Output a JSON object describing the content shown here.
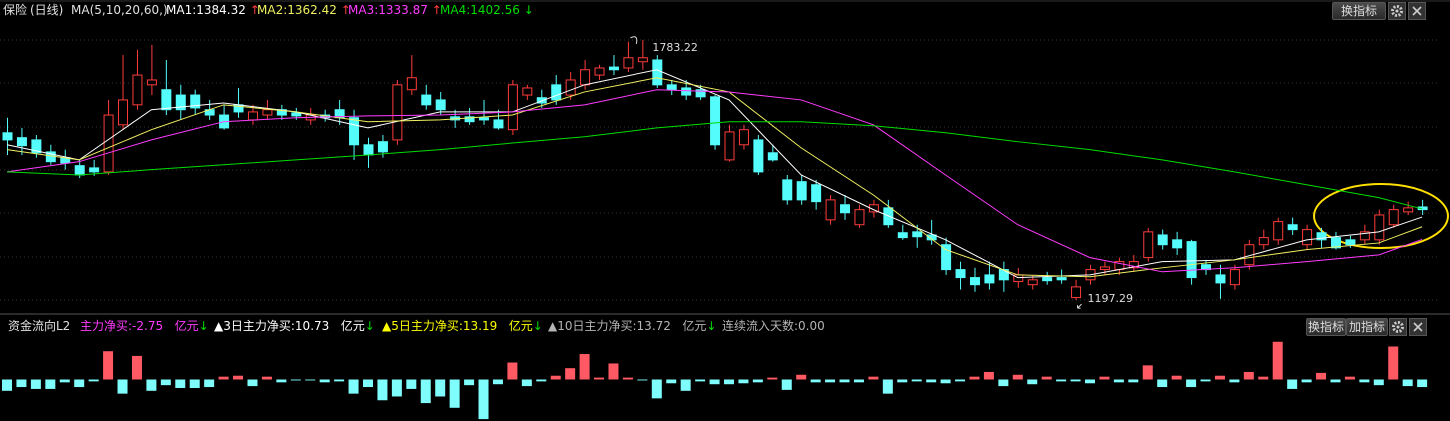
{
  "chart_data": [
    {
      "type": "candlestick",
      "title": "保险",
      "period": "(日线)",
      "ma_label": "MA(5,10,20,60,)",
      "ylim": [
        1175,
        1828
      ],
      "up_color": "#ff3c3c",
      "down_color": "#54fcfc",
      "open": [
        1574,
        1563,
        1558,
        1531,
        1518,
        1500,
        1495,
        1486,
        1592,
        1637,
        1682,
        1671,
        1659,
        1659,
        1626,
        1614,
        1637,
        1603,
        1614,
        1626,
        1619,
        1603,
        1614,
        1626,
        1608,
        1547,
        1554,
        1558,
        1671,
        1659,
        1648,
        1610,
        1610,
        1608,
        1603,
        1581,
        1659,
        1653,
        1682,
        1659,
        1682,
        1704,
        1722,
        1720,
        1734,
        1738,
        1682,
        1675,
        1671,
        1655,
        1513,
        1547,
        1558,
        1529,
        1468,
        1464,
        1457,
        1378,
        1412,
        1367,
        1396,
        1405,
        1349,
        1351,
        1344,
        1322,
        1266,
        1248,
        1254,
        1266,
        1239,
        1232,
        1248,
        1248,
        1203,
        1243,
        1266,
        1266,
        1270,
        1293,
        1344,
        1333,
        1329,
        1277,
        1254,
        1232,
        1277,
        1322,
        1333,
        1367,
        1322,
        1349,
        1338,
        1333,
        1333,
        1333,
        1367,
        1396,
        1407
      ],
      "close": [
        1558,
        1545,
        1529,
        1509,
        1506,
        1479,
        1486,
        1614,
        1648,
        1704,
        1693,
        1626,
        1626,
        1630,
        1614,
        1585,
        1621,
        1621,
        1626,
        1614,
        1612,
        1614,
        1608,
        1608,
        1547,
        1524,
        1531,
        1682,
        1698,
        1637,
        1626,
        1603,
        1599,
        1603,
        1585,
        1682,
        1675,
        1641,
        1648,
        1693,
        1716,
        1720,
        1716,
        1743,
        1743,
        1682,
        1671,
        1659,
        1655,
        1547,
        1576,
        1581,
        1486,
        1513,
        1423,
        1423,
        1419,
        1423,
        1394,
        1401,
        1412,
        1367,
        1338,
        1340,
        1333,
        1266,
        1248,
        1232,
        1236,
        1243,
        1254,
        1243,
        1241,
        1243,
        1227,
        1266,
        1272,
        1284,
        1284,
        1351,
        1322,
        1315,
        1248,
        1266,
        1236,
        1266,
        1322,
        1338,
        1374,
        1356,
        1356,
        1333,
        1315,
        1322,
        1351,
        1389,
        1401,
        1405,
        1401
      ],
      "high": [
        1608,
        1585,
        1569,
        1547,
        1536,
        1513,
        1513,
        1648,
        1749,
        1761,
        1772,
        1738,
        1682,
        1671,
        1648,
        1637,
        1675,
        1637,
        1648,
        1637,
        1630,
        1630,
        1626,
        1648,
        1626,
        1563,
        1569,
        1693,
        1749,
        1682,
        1666,
        1626,
        1630,
        1648,
        1626,
        1693,
        1682,
        1671,
        1704,
        1711,
        1738,
        1727,
        1749,
        1779,
        1783.22,
        1749,
        1693,
        1693,
        1682,
        1659,
        1592,
        1592,
        1569,
        1547,
        1479,
        1479,
        1468,
        1434,
        1434,
        1412,
        1423,
        1423,
        1367,
        1367,
        1378,
        1338,
        1284,
        1270,
        1284,
        1284,
        1270,
        1254,
        1261,
        1266,
        1243,
        1277,
        1284,
        1293,
        1299,
        1360,
        1356,
        1351,
        1333,
        1288,
        1277,
        1277,
        1333,
        1356,
        1383,
        1383,
        1367,
        1360,
        1351,
        1342,
        1367,
        1401,
        1412,
        1419,
        1423
      ],
      "low": [
        1524,
        1524,
        1518,
        1502,
        1491,
        1472,
        1477,
        1479,
        1581,
        1626,
        1659,
        1614,
        1603,
        1614,
        1603,
        1581,
        1608,
        1592,
        1603,
        1603,
        1603,
        1592,
        1599,
        1592,
        1513,
        1495,
        1518,
        1547,
        1659,
        1626,
        1614,
        1585,
        1592,
        1592,
        1581,
        1569,
        1648,
        1630,
        1637,
        1648,
        1671,
        1693,
        1704,
        1711,
        1716,
        1675,
        1659,
        1648,
        1648,
        1536,
        1509,
        1536,
        1479,
        1509,
        1412,
        1412,
        1401,
        1367,
        1378,
        1360,
        1383,
        1360,
        1333,
        1315,
        1322,
        1254,
        1221,
        1216,
        1221,
        1216,
        1225,
        1221,
        1232,
        1234,
        1197.29,
        1232,
        1254,
        1254,
        1261,
        1284,
        1311,
        1299,
        1232,
        1254,
        1200,
        1221,
        1266,
        1311,
        1322,
        1344,
        1311,
        1315,
        1311,
        1315,
        1322,
        1322,
        1360,
        1389,
        1389
      ],
      "ma_x": [
        0,
        5,
        10,
        15,
        20,
        25,
        30,
        35,
        40,
        45,
        50,
        55,
        60,
        65,
        70,
        75,
        80,
        85,
        90,
        95,
        98
      ],
      "series": [
        {
          "name": "MA1:",
          "color": "#ffffff",
          "arrow": "↑",
          "arrow_color": "#ff3c3c",
          "values": [
            1547,
            1513,
            1626,
            1641,
            1621,
            1585,
            1621,
            1621,
            1682,
            1716,
            1648,
            1479,
            1401,
            1333,
            1248,
            1254,
            1284,
            1288,
            1333,
            1351,
            1384.32
          ]
        },
        {
          "name": "MA2:",
          "color": "#f0f060",
          "arrow": "↑",
          "arrow_color": "#ff3c3c",
          "values": [
            1536,
            1513,
            1581,
            1637,
            1621,
            1599,
            1603,
            1614,
            1666,
            1698,
            1666,
            1540,
            1434,
            1311,
            1254,
            1250,
            1270,
            1288,
            1311,
            1326,
            1362.42
          ]
        },
        {
          "name": "MA3:",
          "color": "#ff3cff",
          "arrow": "↑",
          "arrow_color": "#ff3c3c",
          "values": [
            1486,
            1509,
            1558,
            1599,
            1608,
            1612,
            1614,
            1621,
            1637,
            1671,
            1666,
            1648,
            1592,
            1479,
            1367,
            1293,
            1261,
            1270,
            1284,
            1299,
            1333.87
          ]
        },
        {
          "name": "MA4:",
          "color": "#00dd00",
          "arrow": "↓",
          "arrow_color": "#00dd00",
          "values": [
            1486,
            1479,
            1491,
            1502,
            1513,
            1524,
            1536,
            1551,
            1565,
            1585,
            1599,
            1599,
            1590,
            1574,
            1554,
            1536,
            1513,
            1486,
            1457,
            1428,
            1402.56
          ]
        }
      ]
    },
    {
      "type": "bar",
      "title": "资金流向L2",
      "ylim": [
        -4.4,
        4.4
      ],
      "up_color": "#ff5a64",
      "down_color": "#7ffcfc",
      "items": [
        {
          "label": "主力净买:",
          "value": "-2.75",
          "unit": "亿元",
          "arrow": "↓",
          "color": "#ff3cff",
          "arrow_color": "#00dd00"
        },
        {
          "label": "▲3日主力净买:",
          "value": "10.73",
          "unit": "亿元",
          "arrow": "↓",
          "color": "#ffffff",
          "arrow_color": "#00dd00"
        },
        {
          "label": "▲5日主力净买:",
          "value": "13.19",
          "unit": "亿元",
          "arrow": "↓",
          "color": "#ffff00",
          "arrow_color": "#00dd00"
        },
        {
          "label": "▲10日主力净买:",
          "value": "13.72",
          "unit": "亿元",
          "arrow": "↓",
          "color": "#b4b4b4",
          "arrow_color": "#00dd00"
        },
        {
          "label": "连续流入天数:",
          "value": "0.00",
          "color": "#b4b4b4"
        }
      ],
      "values": [
        -1.2,
        -0.8,
        -1,
        -1,
        -0.3,
        -0.8,
        -0.2,
        3,
        -1.5,
        2.5,
        -1.2,
        -0.6,
        -0.9,
        -0.9,
        -0.8,
        0.3,
        0.4,
        -0.7,
        0.3,
        -0.3,
        -0.1,
        -0.1,
        -0.3,
        -0.2,
        -1.5,
        -0.8,
        -2.2,
        -1.8,
        -1,
        -2.5,
        -1.8,
        -3,
        -0.6,
        -4.2,
        -0.5,
        1.8,
        -0.7,
        -0.2,
        0.4,
        1.2,
        2.7,
        0.2,
        1.7,
        0.2,
        -0.1,
        -2,
        -0.4,
        -1.2,
        -0.2,
        -0.5,
        -0.5,
        -0.4,
        -0.3,
        0.2,
        -1.1,
        0.5,
        -0.3,
        -0.3,
        -0.3,
        -0.3,
        0.3,
        -1.5,
        -0.3,
        -0.2,
        -0.3,
        -0.4,
        -0.2,
        0.3,
        0.8,
        -0.7,
        0.5,
        -0.5,
        0.3,
        -0.2,
        -0.2,
        -0.4,
        0.3,
        -0.3,
        -0.3,
        1.5,
        -0.8,
        0.4,
        -0.8,
        -0.2,
        0.4,
        -0.3,
        0.8,
        0.3,
        4,
        -1,
        -0.3,
        0.7,
        -0.3,
        0.3,
        -0.3,
        -0.6,
        3.5,
        -0.7,
        -0.8
      ]
    }
  ],
  "buttons": {
    "top": [
      "换指标"
    ],
    "bottom": [
      "换指标",
      "加指标"
    ]
  }
}
